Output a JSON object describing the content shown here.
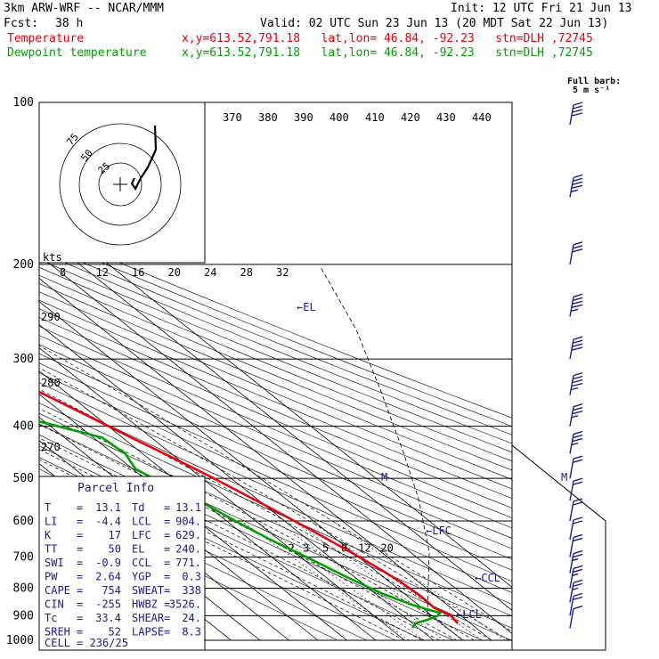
{
  "header": {
    "model": "3km ARW-WRF -- NCAR/MMM",
    "init": "Init: 12 UTC Fri 21 Jun 13",
    "fcst_label": "Fcst:",
    "fcst_value": "38 h",
    "valid": "Valid: 02 UTC Sun 23 Jun 13 (20 MDT Sat 22 Jun 13)",
    "temp_label": "Temperature",
    "dew_label": "Dewpoint temperature",
    "location": "x,y=613.52,791.18   lat,lon= 46.84, -92.23   stn=DLH ,72745"
  },
  "wind_key": {
    "title": "Full barb:",
    "units": "5 m s⁻¹"
  },
  "colors": {
    "temperature": "#e8000b",
    "dewpoint": "#00a000",
    "text": "#1c1c8c",
    "grid": "#000000"
  },
  "parcel_info": {
    "title": "Parcel Info",
    "rows": [
      [
        "T",
        "13.1",
        "Td",
        "13.1"
      ],
      [
        "LI",
        "-4.4",
        "LCL",
        "904."
      ],
      [
        "K",
        "17",
        "LFC",
        "629."
      ],
      [
        "TT",
        "50",
        "EL",
        "240."
      ],
      [
        "SWI",
        "-0.9",
        "CCL",
        "771."
      ],
      [
        "PW",
        "2.64",
        "YGP",
        "0.3"
      ],
      [
        "CAPE",
        "754",
        "SWEAT",
        "338"
      ],
      [
        "CIN",
        "-255",
        "HWBZ",
        "3526."
      ],
      [
        "Tc",
        "33.4",
        "SHEAR",
        "24."
      ],
      [
        "SREH",
        "52",
        "LAPSE",
        "8.3"
      ]
    ],
    "cell": "CELL = 236/25"
  },
  "chart_data": {
    "type": "line",
    "title": "",
    "ylabel": "",
    "xlabel": "",
    "y_scale": "log-pressure",
    "ylim": [
      1000,
      100
    ],
    "pressure_levels": [
      100,
      200,
      300,
      400,
      500,
      600,
      700,
      800,
      900,
      1000
    ],
    "temperature_ticks": [
      -80,
      -70,
      -60,
      -50,
      -40,
      -30,
      -20,
      -10,
      0,
      10,
      20,
      30,
      40
    ],
    "mixing_ratio_labels": [
      "2",
      "3",
      "5",
      "8",
      "12",
      "20"
    ],
    "theta_e_labels": [
      "370",
      "380",
      "390",
      "400",
      "410",
      "420",
      "430",
      "440"
    ],
    "theta_labels": [
      "290",
      "280",
      "270"
    ],
    "hodo_speed_unit": "kts",
    "hodo_speed_ticks": [
      "8",
      "12",
      "16",
      "20",
      "24",
      "28",
      "32"
    ],
    "hodo_ring_labels": [
      "75",
      "50",
      "25"
    ],
    "annotations": [
      "EL",
      "LFC",
      "CCL",
      "LCL"
    ],
    "series": [
      {
        "name": "Temperature",
        "color": "#e8000b",
        "points": [
          [
            103,
            -44
          ],
          [
            110,
            -45
          ],
          [
            120,
            -46.5
          ],
          [
            140,
            -49
          ],
          [
            160,
            -51
          ],
          [
            180,
            -53
          ],
          [
            200,
            -54
          ],
          [
            230,
            -50
          ],
          [
            260,
            -45
          ],
          [
            300,
            -37
          ],
          [
            340,
            -30
          ],
          [
            380,
            -23
          ],
          [
            420,
            -17
          ],
          [
            460,
            -11
          ],
          [
            500,
            -6
          ],
          [
            560,
            0
          ],
          [
            620,
            5
          ],
          [
            680,
            9
          ],
          [
            740,
            12.3
          ],
          [
            780,
            13.8
          ],
          [
            830,
            14.6
          ],
          [
            870,
            14.2
          ],
          [
            900,
            16.6
          ],
          [
            930,
            15.6
          ]
        ]
      },
      {
        "name": "Dewpoint temperature",
        "color": "#00a000",
        "points": [
          [
            103,
            -56
          ],
          [
            120,
            -61
          ],
          [
            140,
            -68
          ],
          [
            160,
            -71
          ],
          [
            180,
            -75
          ],
          [
            200,
            -78
          ],
          [
            220,
            -79
          ],
          [
            250,
            -68
          ],
          [
            280,
            -51
          ],
          [
            300,
            -60
          ],
          [
            340,
            -78
          ],
          [
            370,
            -54
          ],
          [
            420,
            -27
          ],
          [
            450,
            -26
          ],
          [
            480,
            -29
          ],
          [
            520,
            -25
          ],
          [
            560,
            -20
          ],
          [
            600,
            -17
          ],
          [
            650,
            -13
          ],
          [
            700,
            -8
          ],
          [
            760,
            -3
          ],
          [
            820,
            2.5
          ],
          [
            860,
            8
          ],
          [
            880,
            12
          ],
          [
            890,
            14
          ],
          [
            900,
            12
          ],
          [
            915,
            7
          ],
          [
            930,
            1
          ],
          [
            948,
            -2
          ]
        ]
      }
    ],
    "wind_profile": [
      {
        "p": 110,
        "speed_kt": 40
      },
      {
        "p": 150,
        "speed_kt": 35
      },
      {
        "p": 200,
        "speed_kt": 30
      },
      {
        "p": 250,
        "speed_kt": 35
      },
      {
        "p": 300,
        "speed_kt": 40
      },
      {
        "p": 350,
        "speed_kt": 35
      },
      {
        "p": 400,
        "speed_kt": 25
      },
      {
        "p": 450,
        "speed_kt": 25
      },
      {
        "p": 500,
        "speed_kt": 20
      },
      {
        "p": 550,
        "speed_kt": 20
      },
      {
        "p": 600,
        "speed_kt": 20
      },
      {
        "p": 650,
        "speed_kt": 20
      },
      {
        "p": 700,
        "speed_kt": 20
      },
      {
        "p": 750,
        "speed_kt": 15
      },
      {
        "p": 800,
        "speed_kt": 15
      },
      {
        "p": 850,
        "speed_kt": 15
      },
      {
        "p": 900,
        "speed_kt": 20
      },
      {
        "p": 950,
        "speed_kt": 10
      }
    ],
    "hodograph": [
      [
        6,
        -28
      ],
      [
        8,
        -18
      ],
      [
        4,
        -8
      ],
      [
        0,
        0
      ],
      [
        -3,
        4
      ],
      [
        -6,
        6
      ]
    ]
  }
}
